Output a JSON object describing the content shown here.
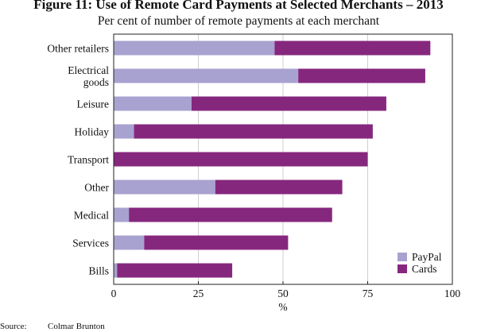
{
  "chart_data": {
    "type": "bar",
    "stacked": true,
    "orientation": "horizontal",
    "title": "Figure 11: Use of Remote Card Payments at Selected Merchants – 2013",
    "subtitle": "Per cent of number of remote payments at each merchant",
    "xlabel": "%",
    "ylabel": "",
    "xlim": [
      0,
      100
    ],
    "xticks": [
      "0",
      "25",
      "50",
      "75",
      "100"
    ],
    "grid": true,
    "legend_position": "bottom-right",
    "categories": [
      [
        "Other retailers"
      ],
      [
        "Electrical",
        "goods"
      ],
      [
        "Leisure"
      ],
      [
        "Holiday"
      ],
      [
        "Transport"
      ],
      [
        "Other"
      ],
      [
        "Medical"
      ],
      [
        "Services"
      ],
      [
        "Bills"
      ]
    ],
    "series": [
      {
        "name": "PayPal",
        "color": "#a8a2d0",
        "values": [
          47.5,
          54.5,
          23,
          6,
          0,
          30,
          4.5,
          9,
          1
        ]
      },
      {
        "name": "Cards",
        "color": "#86277e",
        "values": [
          46,
          37.5,
          57.5,
          70.5,
          75,
          37.5,
          60,
          42.5,
          34
        ]
      }
    ]
  },
  "source": {
    "label": "Source:",
    "text": "Colmar Brunton"
  }
}
